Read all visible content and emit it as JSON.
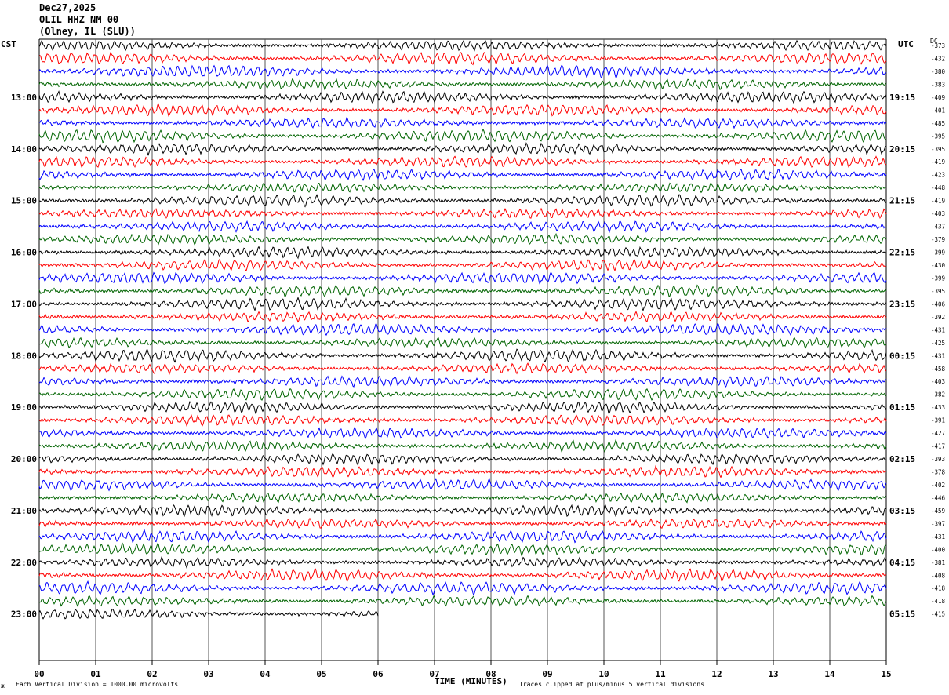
{
  "header": {
    "date": "Dec27,2025",
    "station": "OLIL HHZ NM 00",
    "location": "(Olney, IL (SLU))"
  },
  "left_tz": "CST",
  "right_tz": "UTC",
  "dc_header": "DC",
  "xlabel": "TIME (MINUTES)",
  "footer_left": "Each Vertical Division = 1000.00 microvolts",
  "footer_right": "Traces clipped at plus/minus 5 vertical divisions",
  "footer_mark": "ж",
  "colors": {
    "trace_cycle": [
      "#000000",
      "#ff0000",
      "#0000ff",
      "#006400"
    ],
    "grid": "#000000"
  },
  "chart_data": {
    "type": "line",
    "title": "",
    "xlabel": "TIME (MINUTES)",
    "x_ticks": [
      "00",
      "01",
      "02",
      "03",
      "04",
      "05",
      "06",
      "07",
      "08",
      "09",
      "10",
      "11",
      "12",
      "13",
      "14",
      "15"
    ],
    "xlim": [
      0,
      15
    ],
    "left_time_labels": [
      "13:00",
      "14:00",
      "15:00",
      "16:00",
      "17:00",
      "18:00",
      "19:00",
      "20:00",
      "21:00",
      "22:00",
      "23:00"
    ],
    "right_time_labels": [
      "19:15",
      "20:15",
      "21:15",
      "22:15",
      "23:15",
      "00:15",
      "01:15",
      "02:15",
      "03:15",
      "04:15",
      "05:15"
    ],
    "traces_per_hour": 4,
    "trace_count": 45,
    "last_trace_end_minute": 6,
    "dc_offsets": [
      "-373",
      "-432",
      "-380",
      "-383",
      "-409",
      "-401",
      "-485",
      "-395",
      "-395",
      "-419",
      "-423",
      "-448",
      "-419",
      "-403",
      "-437",
      "-379",
      "-399",
      "-430",
      "-399",
      "-395",
      "-406",
      "-392",
      "-431",
      "-425",
      "-431",
      "-458",
      "-403",
      "-382",
      "-433",
      "-391",
      "-427",
      "-417",
      "-393",
      "-378",
      "-402",
      "-446",
      "-459",
      "-397",
      "-431",
      "-400",
      "-381",
      "-408",
      "-418",
      "-418",
      "-415"
    ]
  }
}
